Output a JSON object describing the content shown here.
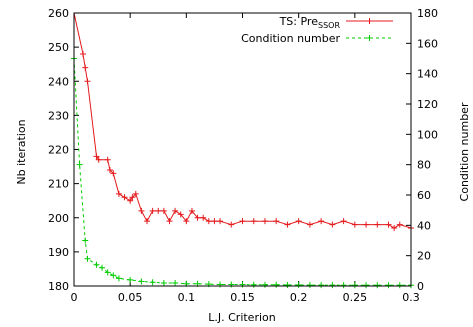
{
  "chart_data": {
    "type": "line",
    "xlabel": "L.J. Criterion",
    "ylabel": "Nb iteration",
    "y2label": "Condition number",
    "xlim": [
      0,
      0.3
    ],
    "ylim": [
      180,
      260
    ],
    "y2lim": [
      0,
      180
    ],
    "xticks": [
      0,
      0.05,
      0.1,
      0.15,
      0.2,
      0.25,
      0.3
    ],
    "xtick_labels": [
      "0",
      "0.05",
      "0.1",
      "0.15",
      "0.2",
      "0.25",
      "0.3"
    ],
    "yticks": [
      180,
      190,
      200,
      210,
      220,
      230,
      240,
      250,
      260
    ],
    "ytick_labels": [
      "180",
      "190",
      "200",
      "210",
      "220",
      "230",
      "240",
      "250",
      "260"
    ],
    "y2ticks": [
      0,
      20,
      40,
      60,
      80,
      100,
      120,
      140,
      160,
      180
    ],
    "y2tick_labels": [
      "0",
      "20",
      "40",
      "60",
      "80",
      "100",
      "120",
      "140",
      "160",
      "180"
    ],
    "legend_position": "top-right",
    "grid": false,
    "series": [
      {
        "name": "TS: Pre",
        "name_subscript": "SSOR",
        "axis": "left",
        "color": "#e41a1c",
        "style": "solid",
        "x": [
          0,
          0.008,
          0.01,
          0.012,
          0.02,
          0.022,
          0.03,
          0.032,
          0.035,
          0.04,
          0.045,
          0.05,
          0.052,
          0.055,
          0.06,
          0.065,
          0.07,
          0.075,
          0.08,
          0.085,
          0.09,
          0.095,
          0.1,
          0.105,
          0.11,
          0.115,
          0.12,
          0.125,
          0.13,
          0.14,
          0.15,
          0.16,
          0.17,
          0.18,
          0.19,
          0.2,
          0.21,
          0.22,
          0.23,
          0.24,
          0.25,
          0.26,
          0.27,
          0.28,
          0.285,
          0.29,
          0.3
        ],
        "y": [
          265,
          248,
          244,
          240,
          218,
          217,
          217,
          214,
          213,
          207,
          206,
          205,
          206,
          207,
          202,
          199,
          202,
          202,
          202,
          199,
          202,
          201,
          199,
          202,
          200,
          200,
          199,
          199,
          199,
          198,
          199,
          199,
          199,
          199,
          198,
          199,
          198,
          199,
          198,
          199,
          198,
          198,
          198,
          198,
          197,
          198,
          197
        ]
      },
      {
        "name": "Condition number",
        "axis": "right",
        "color": "#00cc00",
        "style": "dashed",
        "x": [
          0,
          0.005,
          0.01,
          0.012,
          0.02,
          0.025,
          0.03,
          0.035,
          0.04,
          0.05,
          0.06,
          0.07,
          0.08,
          0.09,
          0.1,
          0.11,
          0.12,
          0.13,
          0.14,
          0.15,
          0.16,
          0.17,
          0.18,
          0.19,
          0.2,
          0.21,
          0.22,
          0.23,
          0.24,
          0.25,
          0.26,
          0.27,
          0.28,
          0.29,
          0.3
        ],
        "y": [
          150,
          80,
          30,
          18,
          14,
          12,
          9,
          7,
          5,
          4,
          3,
          2.5,
          2,
          2,
          1.5,
          1.5,
          1.2,
          1,
          1,
          1,
          0.8,
          0.8,
          0.8,
          0.7,
          0.7,
          0.6,
          0.6,
          0.6,
          0.5,
          0.5,
          0.5,
          0.5,
          0.5,
          0.5,
          0.5
        ]
      }
    ]
  }
}
